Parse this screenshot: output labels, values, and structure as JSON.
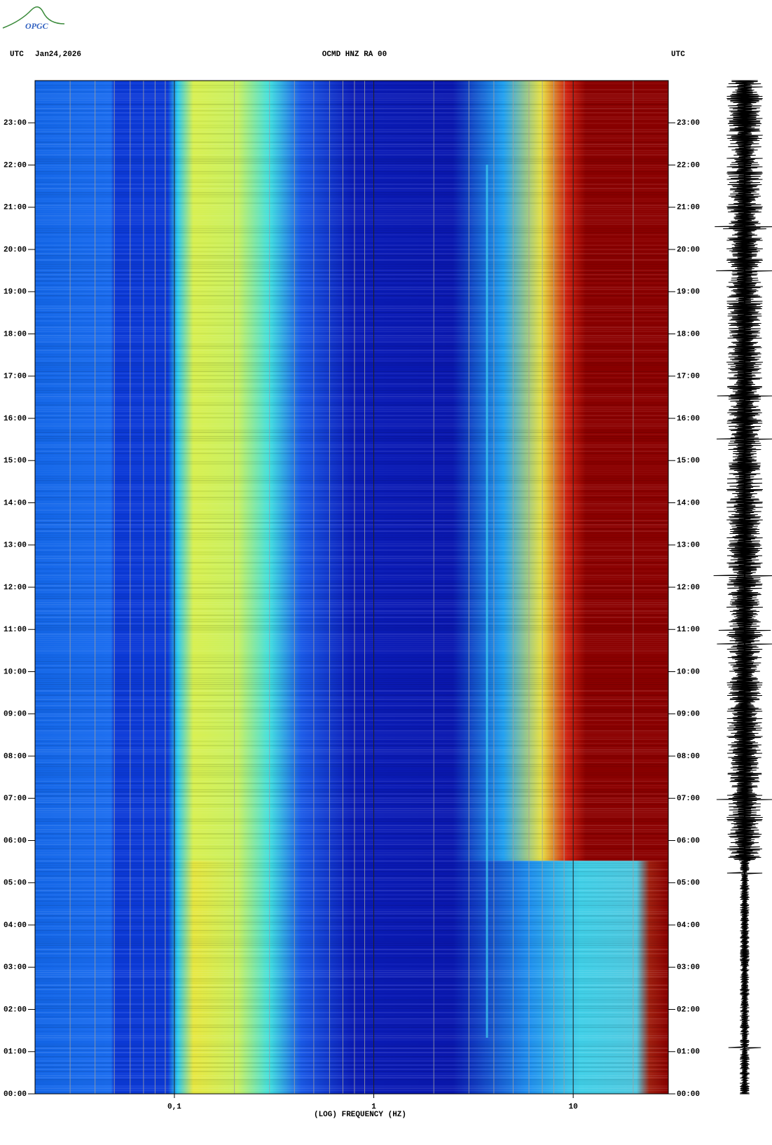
{
  "chart_data": {
    "type": "spectrogram",
    "logo": "OPGC",
    "time_zone": "UTC",
    "date": "Jan24,2026",
    "title": "OCMD HNZ RA 00",
    "right_label": "UTC",
    "xlabel": "(LOG) FREQUENCY (HZ)",
    "xscale": "log",
    "xlim": [
      0.02,
      30
    ],
    "xticks": [
      {
        "value": 0.1,
        "label": "0,1"
      },
      1,
      10
    ],
    "xgrid": [
      0.03,
      0.04,
      0.05,
      0.06,
      0.07,
      0.08,
      0.09,
      0.2,
      0.3,
      0.4,
      0.5,
      0.6,
      0.7,
      0.8,
      0.9,
      2,
      3,
      4,
      5,
      6,
      7,
      8,
      9,
      20
    ],
    "ylim": [
      0,
      24
    ],
    "yticks": [
      {
        "value": 0,
        "label": "00:00"
      },
      {
        "value": 1,
        "label": "01:00"
      },
      {
        "value": 2,
        "label": "02:00"
      },
      {
        "value": 3,
        "label": "03:00"
      },
      {
        "value": 4,
        "label": "04:00"
      },
      {
        "value": 5,
        "label": "05:00"
      },
      {
        "value": 6,
        "label": "06:00"
      },
      {
        "value": 7,
        "label": "07:00"
      },
      {
        "value": 8,
        "label": "08:00"
      },
      {
        "value": 9,
        "label": "09:00"
      },
      {
        "value": 10,
        "label": "10:00"
      },
      {
        "value": 11,
        "label": "11:00"
      },
      {
        "value": 12,
        "label": "12:00"
      },
      {
        "value": 13,
        "label": "13:00"
      },
      {
        "value": 14,
        "label": "14:00"
      },
      {
        "value": 15,
        "label": "15:00"
      },
      {
        "value": 16,
        "label": "16:00"
      },
      {
        "value": 17,
        "label": "17:00"
      },
      {
        "value": 18,
        "label": "18:00"
      },
      {
        "value": 19,
        "label": "19:00"
      },
      {
        "value": 20,
        "label": "20:00"
      },
      {
        "value": 21,
        "label": "21:00"
      },
      {
        "value": 22,
        "label": "22:00"
      },
      {
        "value": 23,
        "label": "23:00"
      }
    ]
  }
}
